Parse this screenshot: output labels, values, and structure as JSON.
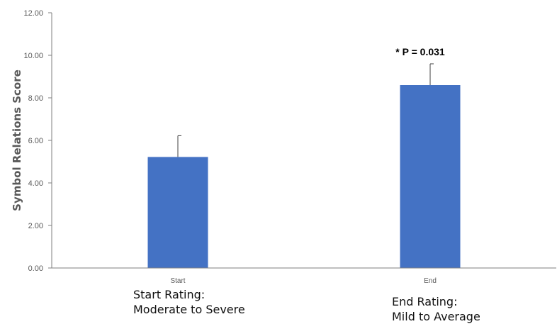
{
  "chart_data": {
    "type": "bar",
    "categories": [
      "Start",
      "End"
    ],
    "values": [
      5.22,
      8.6
    ],
    "error_bars": [
      1.0,
      1.0
    ],
    "title": "",
    "xlabel": "",
    "ylabel": "Symbol Relations Score",
    "ylim": [
      0,
      12
    ],
    "yticks": [
      "0.00",
      "2.00",
      "4.00",
      "6.00",
      "8.00",
      "10.00",
      "12.00"
    ],
    "grid": false,
    "legend": "none",
    "bar_color": "#4472C4",
    "annotation": "* P = 0.031"
  },
  "ratings": {
    "start_title": "Start Rating:",
    "start_desc": "Moderate to Severe",
    "end_title": "End Rating:",
    "end_desc": "Mild to Average"
  }
}
